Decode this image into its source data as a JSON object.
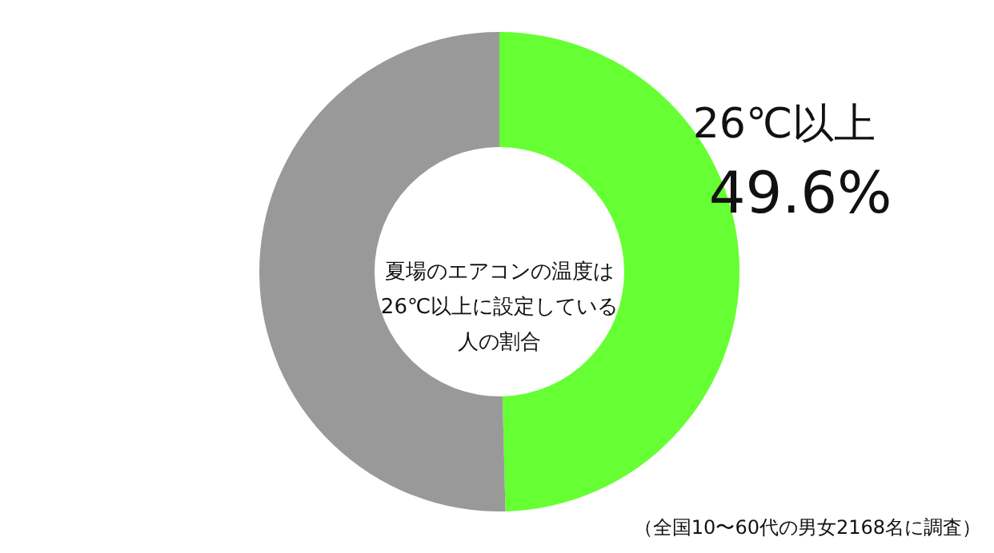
{
  "chart_data": {
    "type": "donut",
    "title": "夏場のエアコンの温度は26℃以上に設定している人の割合",
    "categories": [
      "26℃以上",
      null
    ],
    "values": [
      49.6,
      50.4
    ],
    "colors": [
      "#66ff33",
      "#999999"
    ],
    "value_labels": [
      "49.6%",
      null
    ],
    "annotations": [
      "（全国10〜60代の男女2168名に調査）"
    ]
  }
}
